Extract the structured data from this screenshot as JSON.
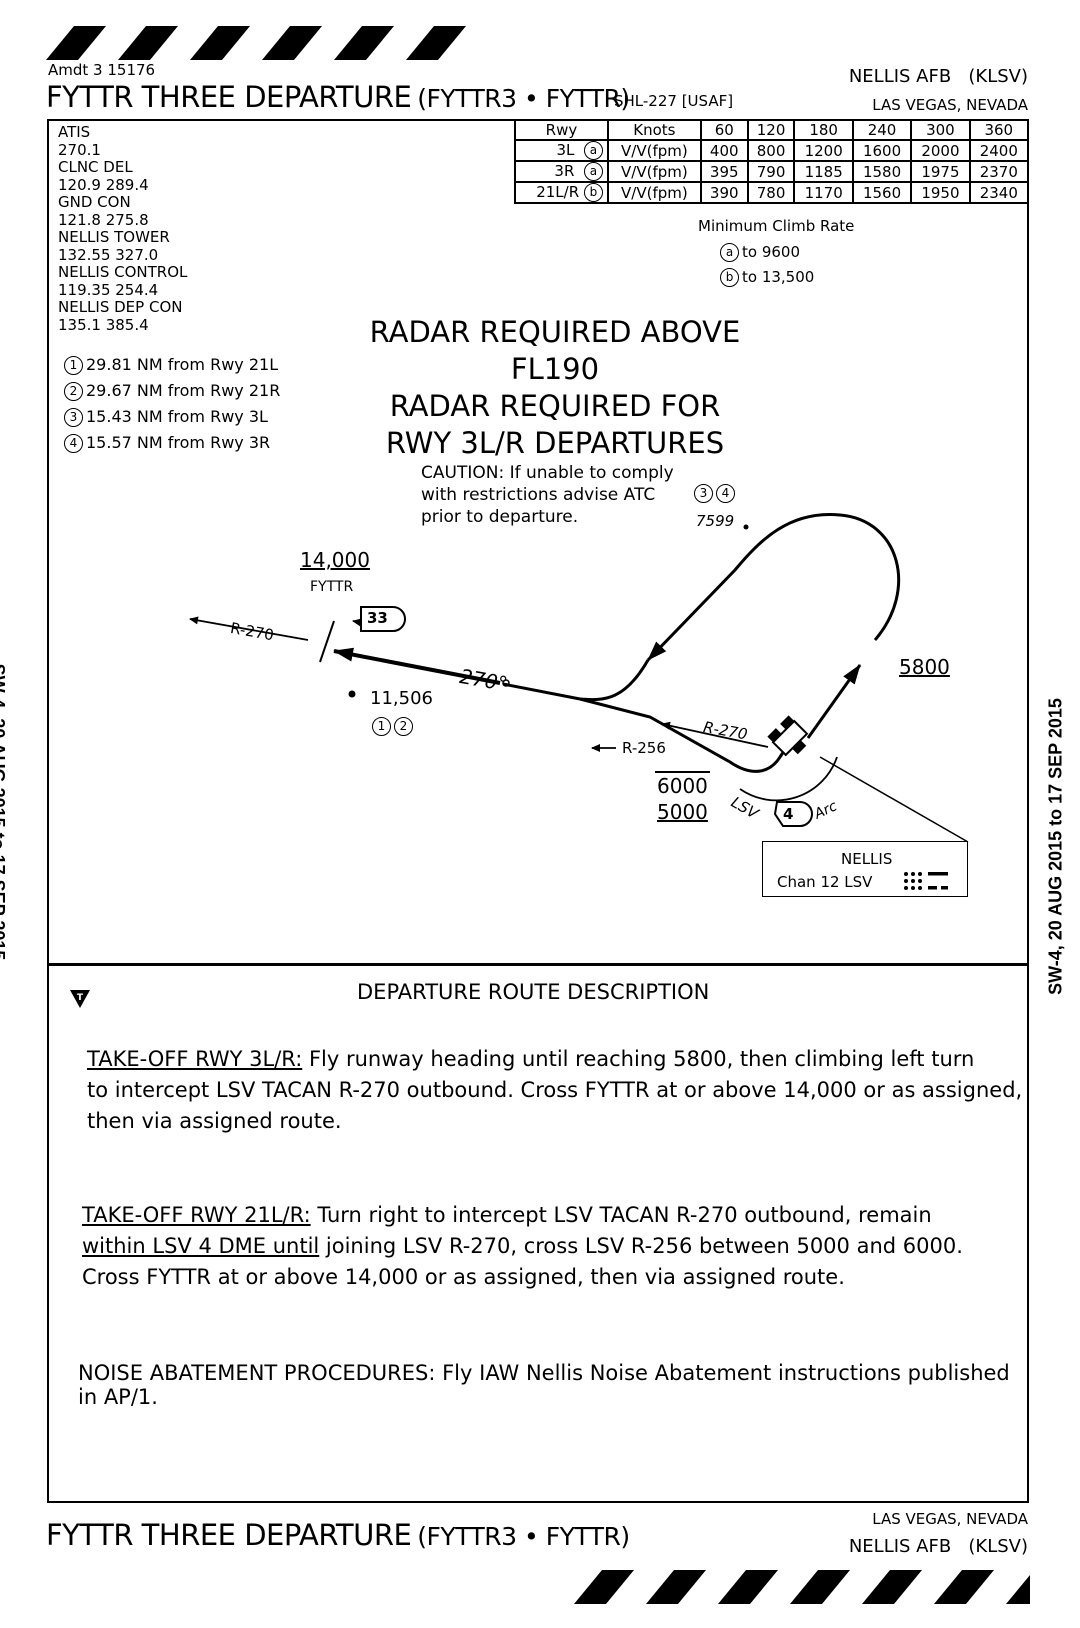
{
  "header": {
    "amendment": "Amdt 3  15176",
    "title": "FYTTR THREE DEPARTURE",
    "code": "(FYTTR3 • FYTTR)",
    "ref": "SHL-227 [USAF]",
    "airport": "NELLIS AFB",
    "ident": "(KLSV)",
    "city": "LAS VEGAS, NEVADA"
  },
  "side_text": "SW-4, 20 AUG 2015 to 17 SEP 2015",
  "comms": [
    {
      "name": "ATIS",
      "freq": "270.1"
    },
    {
      "name": "CLNC DEL",
      "freq": "120.9  289.4"
    },
    {
      "name": "GND CON",
      "freq": "121.8  275.8"
    },
    {
      "name": "NELLIS TOWER",
      "freq": "132.55  327.0"
    },
    {
      "name": "NELLIS CONTROL",
      "freq": "119.35  254.4"
    },
    {
      "name": "NELLIS DEP CON",
      "freq": "135.1  385.4"
    }
  ],
  "climb_table": {
    "headers": [
      "Rwy",
      "Knots",
      "60",
      "120",
      "180",
      "240",
      "300",
      "360"
    ],
    "rows": [
      {
        "rwy": "3L",
        "mark": "a",
        "unit": "V/V(fpm)",
        "vals": [
          "400",
          "800",
          "1200",
          "1600",
          "2000",
          "2400"
        ]
      },
      {
        "rwy": "3R",
        "mark": "a",
        "unit": "V/V(fpm)",
        "vals": [
          "395",
          "790",
          "1185",
          "1580",
          "1975",
          "2370"
        ]
      },
      {
        "rwy": "21L/R",
        "mark": "b",
        "unit": "V/V(fpm)",
        "vals": [
          "390",
          "780",
          "1170",
          "1560",
          "1950",
          "2340"
        ]
      }
    ],
    "caption": "Minimum Climb Rate",
    "notes": [
      {
        "mark": "a",
        "text": "to 9600"
      },
      {
        "mark": "b",
        "text": "to 13,500"
      }
    ]
  },
  "distances": [
    {
      "num": "1",
      "text": "29.81 NM from Rwy 21L"
    },
    {
      "num": "2",
      "text": "29.67 NM from Rwy 21R"
    },
    {
      "num": "3",
      "text": "15.43 NM from Rwy 3L"
    },
    {
      "num": "4",
      "text": "15.57 NM from Rwy 3R"
    }
  ],
  "radar": [
    "RADAR REQUIRED ABOVE FL190",
    "RADAR REQUIRED FOR",
    "RWY 3L/R DEPARTURES"
  ],
  "caution": [
    "CAUTION: If unable to comply",
    "with restrictions advise ATC",
    "prior to departure."
  ],
  "map": {
    "fix_alt": "14,000",
    "fix_name": "FYTTR",
    "fix_dme": "33",
    "radial_270": "R-270",
    "course": "270°",
    "obst_1": "11,506",
    "obst_2": "7599",
    "obst_refs_1": [
      "1",
      "2"
    ],
    "obst_refs_2": [
      "3",
      "4"
    ],
    "alt_5800": "5800",
    "radial_256": "R-256",
    "alt_top": "6000",
    "alt_bottom": "5000",
    "arc_lsv": "LSV",
    "arc_dme": "4",
    "arc_label": "Arc",
    "navaid_name": "NELLIS",
    "navaid_chan": "Chan 12  LSV"
  },
  "route": {
    "heading": "DEPARTURE ROUTE DESCRIPTION",
    "p1_label": "TAKE-OFF RWY 3L/R:",
    "p1_lines": [
      " Fly runway heading until reaching 5800, then climbing left turn",
      "to intercept LSV TACAN R-270 outbound.  Cross FYTTR at or above 14,000 or as assigned,",
      "then via assigned route."
    ],
    "p2_label": "TAKE-OFF RWY 21L/R:",
    "p2_l1": "  Turn right to intercept LSV TACAN R-270 outbound, remain",
    "p2_l2_u": "within LSV 4 DME until",
    "p2_l2_rest": " joining LSV R-270, cross LSV R-256 between 5000 and 6000.",
    "p2_l3": "Cross FYTTR at or above 14,000 or as assigned, then via assigned route.",
    "noise_l1": "NOISE ABATEMENT PROCEDURES: Fly IAW Nellis Noise Abatement instructions published",
    "noise_l2": "in AP/1."
  }
}
